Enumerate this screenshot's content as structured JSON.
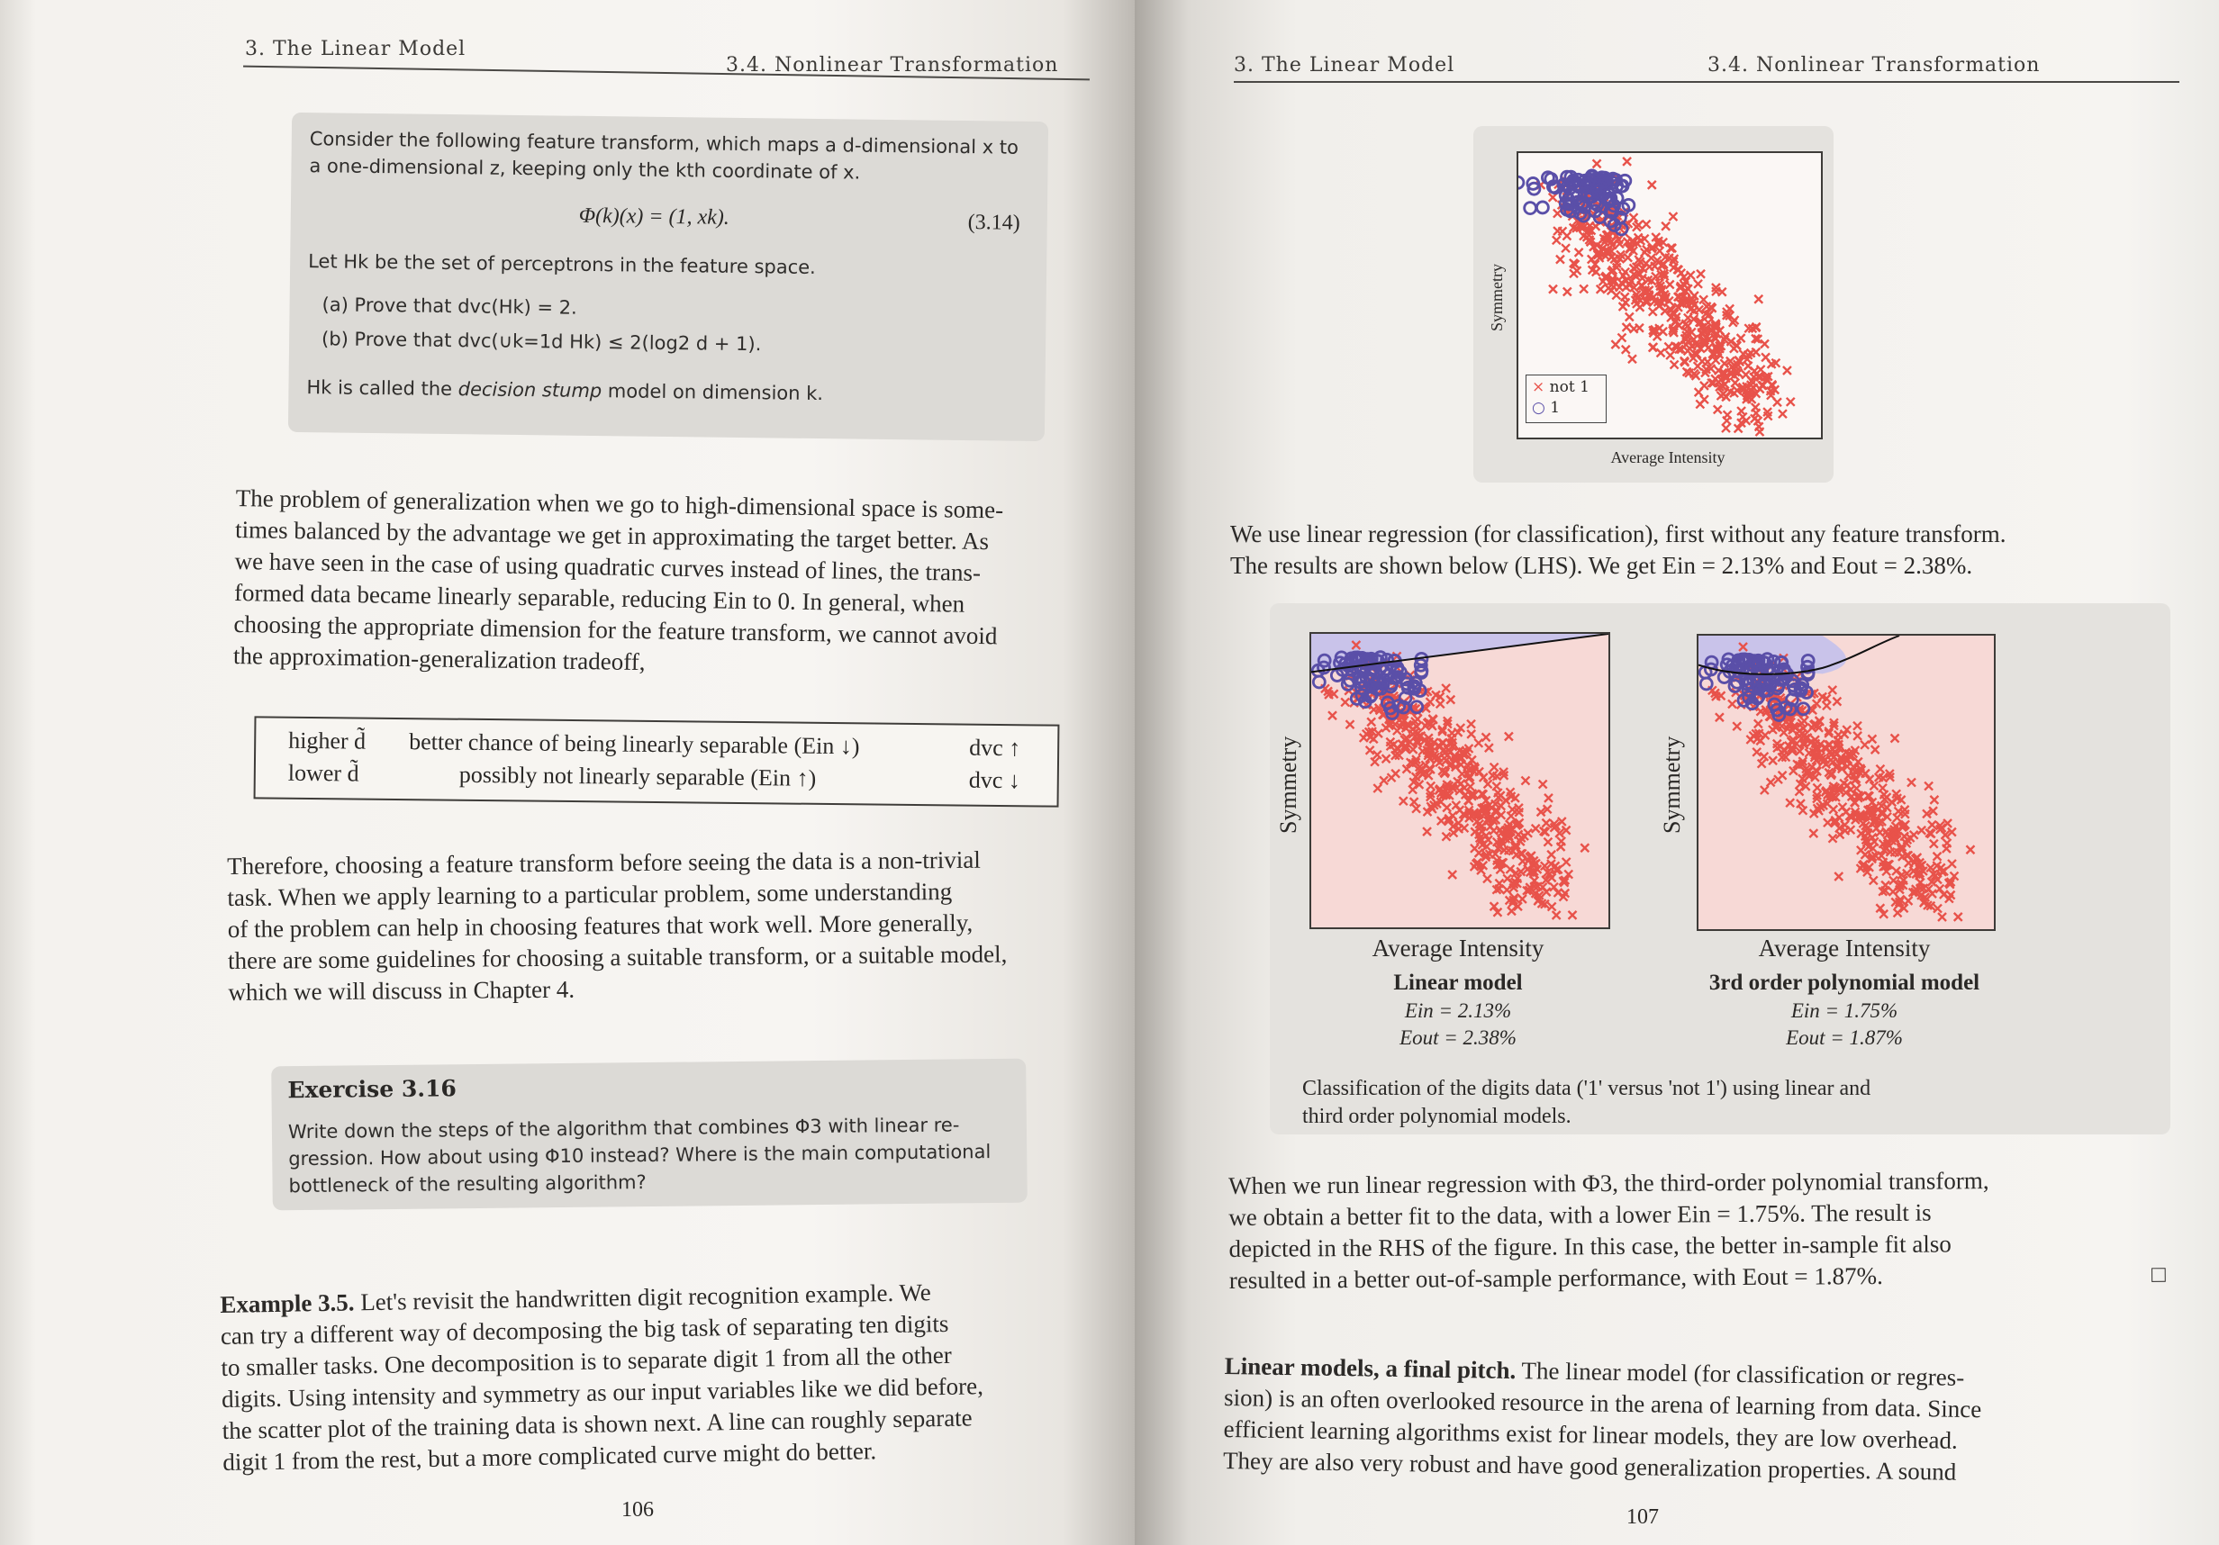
{
  "left_page": {
    "header_left": "3. The Linear Model",
    "header_right": "3.4. Nonlinear Transformation",
    "exercise_box": {
      "intro_line1": "Consider the following feature transform, which maps a d-dimensional x to",
      "intro_line2": "a one-dimensional z, keeping only the kth coordinate of x.",
      "equation": "Φ(k)(x) = (1, xk).",
      "equation_number": "(3.14)",
      "let_line": "Let Hk be the set of perceptrons in the feature space.",
      "part_a": "(a) Prove that dvc(Hk) = 2.",
      "part_b": "(b) Prove that dvc(∪k=1d Hk) ≤ 2(log2 d + 1).",
      "closing_prefix": "Hk is called the ",
      "closing_em": "decision stump",
      "closing_suffix": " model on dimension k."
    },
    "paragraph1": [
      "The problem of generalization when we go to high-dimensional space is some-",
      "times balanced by the advantage we get in approximating the target better. As",
      "we have seen in the case of using quadratic curves instead of lines, the trans-",
      "formed data became linearly separable, reducing Ein to 0. In general, when",
      "choosing the appropriate dimension for the feature transform, we cannot avoid",
      "the approximation-generalization tradeoff,"
    ],
    "tradeoff_table": {
      "row1": {
        "label": "higher d̃",
        "text": "better chance of being linearly separable (Ein ↓)",
        "dvc": "dvc ↑"
      },
      "row2": {
        "label": "lower d̃",
        "text": "possibly not linearly separable (Ein ↑)",
        "dvc": "dvc ↓"
      }
    },
    "paragraph2": [
      "Therefore, choosing a feature transform before seeing the data is a non-trivial",
      "task. When we apply learning to a particular problem, some understanding",
      "of the problem can help in choosing features that work well. More generally,",
      "there are some guidelines for choosing a suitable transform, or a suitable model,",
      "which we will discuss in Chapter 4."
    ],
    "exercise_316": {
      "title": "Exercise 3.16",
      "lines": [
        "Write down the steps of the algorithm that combines Φ3 with linear re-",
        "gression. How about using Φ10 instead? Where is the main computational",
        "bottleneck of the resulting algorithm?"
      ]
    },
    "example": {
      "title": "Example 3.5.",
      "first_line_rest": "Let's revisit the handwritten digit recognition example. We",
      "lines": [
        "can try a different way of decomposing the big task of separating ten digits",
        "to smaller tasks. One decomposition is to separate digit 1 from all the other",
        "digits. Using intensity and symmetry as our input variables like we did before,",
        "the scatter plot of the training data is shown next. A line can roughly separate",
        "digit 1 from the rest, but a more complicated curve might do better."
      ]
    },
    "page_number": "106"
  },
  "right_page": {
    "header_left": "3. The Linear Model",
    "header_right": "3.4. Nonlinear Transformation",
    "top_plot": {
      "ylabel": "Symmetry",
      "xlabel": "Average Intensity",
      "legend": [
        {
          "marker": "×",
          "label": "not 1",
          "color": "#e8524a"
        },
        {
          "marker": "○",
          "label": "1",
          "color": "#5a4fa8"
        }
      ]
    },
    "paragraph1": [
      "We use linear regression (for classification), first without any feature transform.",
      "The results are shown below (LHS). We get Ein = 2.13% and Eout = 2.38%."
    ],
    "left_panel": {
      "ylabel": "Symmetry",
      "xlabel": "Average Intensity",
      "model": "Linear model",
      "ein": "Ein = 2.13%",
      "eout": "Eout = 2.38%"
    },
    "right_panel": {
      "ylabel": "Symmetry",
      "xlabel": "Average Intensity",
      "model": "3rd order polynomial model",
      "ein": "Ein = 1.75%",
      "eout": "Eout = 1.87%"
    },
    "figure_caption": [
      "Classification of the digits data ('1' versus 'not 1') using linear and",
      "third order polynomial models."
    ],
    "paragraph2": [
      "When we run linear regression with Φ3, the third-order polynomial transform,",
      "we obtain a better fit to the data, with a lower Ein = 1.75%. The result is",
      "depicted in the RHS of the figure. In this case, the better in-sample fit also",
      "resulted in a better out-of-sample performance, with Eout = 1.87%."
    ],
    "qed_symbol": "□",
    "paragraph3_title": "Linear models, a final pitch.",
    "paragraph3_first_rest": "The linear model (for classification or regres-",
    "paragraph3": [
      "sion) is an often overlooked resource in the arena of learning from data. Since",
      "efficient learning algorithms exist for linear models, they are low overhead.",
      "They are also very robust and have good generalization properties. A sound"
    ],
    "page_number": "107"
  },
  "colors": {
    "not1": "#e8524a",
    "one": "#5a4fa8",
    "region_not1": "#f7d9d6",
    "region_one": "#c9c3ea",
    "exercise_bg": "#dcdad6"
  }
}
